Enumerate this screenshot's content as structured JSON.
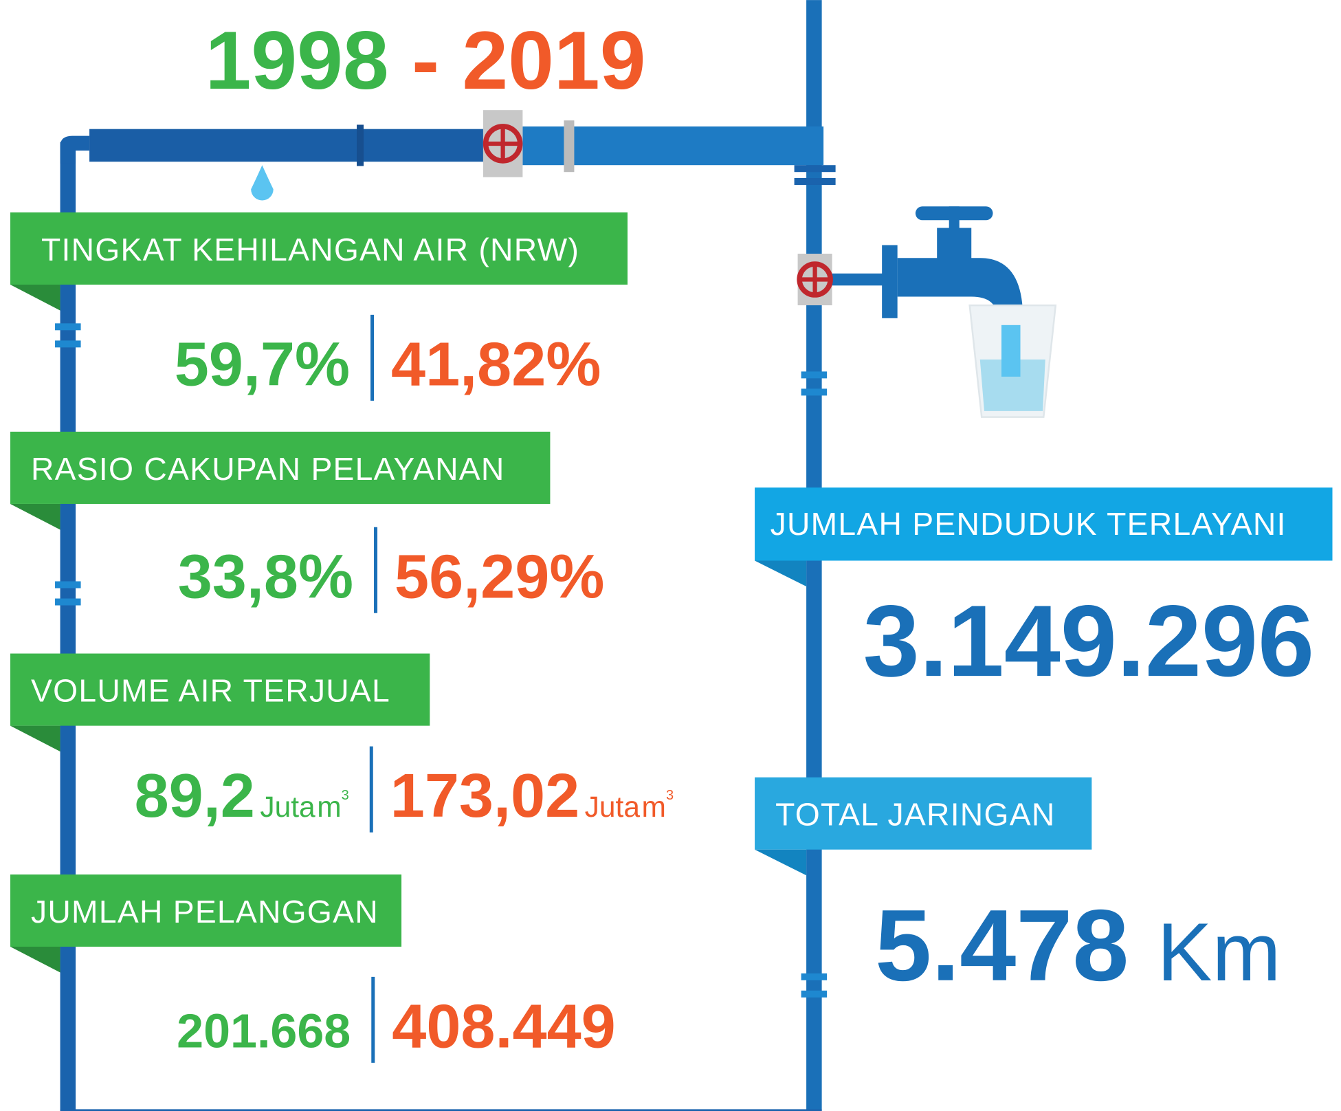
{
  "header": {
    "start": "1998",
    "dash": "-",
    "end": "2019"
  },
  "stats": [
    {
      "label": "TINGKAT KEHILANGAN AIR (NRW)",
      "before": "59,7%",
      "after": "41,82%"
    },
    {
      "label": "RASIO CAKUPAN PELAYANAN",
      "before": "33,8%",
      "after": "56,29%"
    },
    {
      "label": "VOLUME AIR TERJUAL",
      "before": "89,2",
      "before_unit": {
        "word": "Juta",
        "base": "m",
        "exp": "3"
      },
      "after": "173,02",
      "after_unit": {
        "word": "Juta",
        "base": "m",
        "exp": "3"
      }
    },
    {
      "label": "JUMLAH PELANGGAN",
      "before": "201.668",
      "after": "408.449"
    }
  ],
  "summary": [
    {
      "label": "JUMLAH PENDUDUK TERLAYANI",
      "value": "3.149.296"
    },
    {
      "label": "TOTAL JARINGAN",
      "value": "5.478",
      "unit": "Km"
    }
  ]
}
